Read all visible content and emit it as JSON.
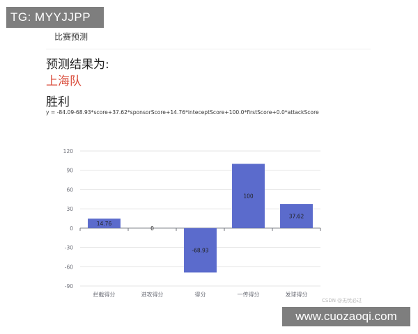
{
  "watermark_top": "TG: MYYJJPP",
  "tab_label": "比赛预测",
  "result_label": "预测结果为:",
  "team_name": "上海队",
  "outcome": "胜利",
  "formula": "y = -84.09-68.93*score+37.62*sponsorScore+14.76*inteceptScore+100.0*firstScore+0.0*attackScore",
  "watermark_csdn": "CSDN @无忧必过",
  "watermark_site": "www.cuozaoqi.com",
  "colors": {
    "bar": "#5b6bcc",
    "team": "#d94a38",
    "axis": "#6e7079",
    "grid": "#e6e6e6"
  },
  "chart_data": {
    "type": "bar",
    "categories": [
      "拦截得分",
      "进攻得分",
      "得分",
      "一传得分",
      "发球得分"
    ],
    "values": [
      14.76,
      0,
      -68.93,
      100,
      37.62
    ],
    "value_labels": [
      "14.76",
      "0",
      "-68.93",
      "100",
      "37.62"
    ],
    "ylim": [
      -90,
      120
    ],
    "yticks": [
      120,
      90,
      60,
      30,
      0,
      -30,
      -60,
      -90
    ],
    "grid": true
  }
}
